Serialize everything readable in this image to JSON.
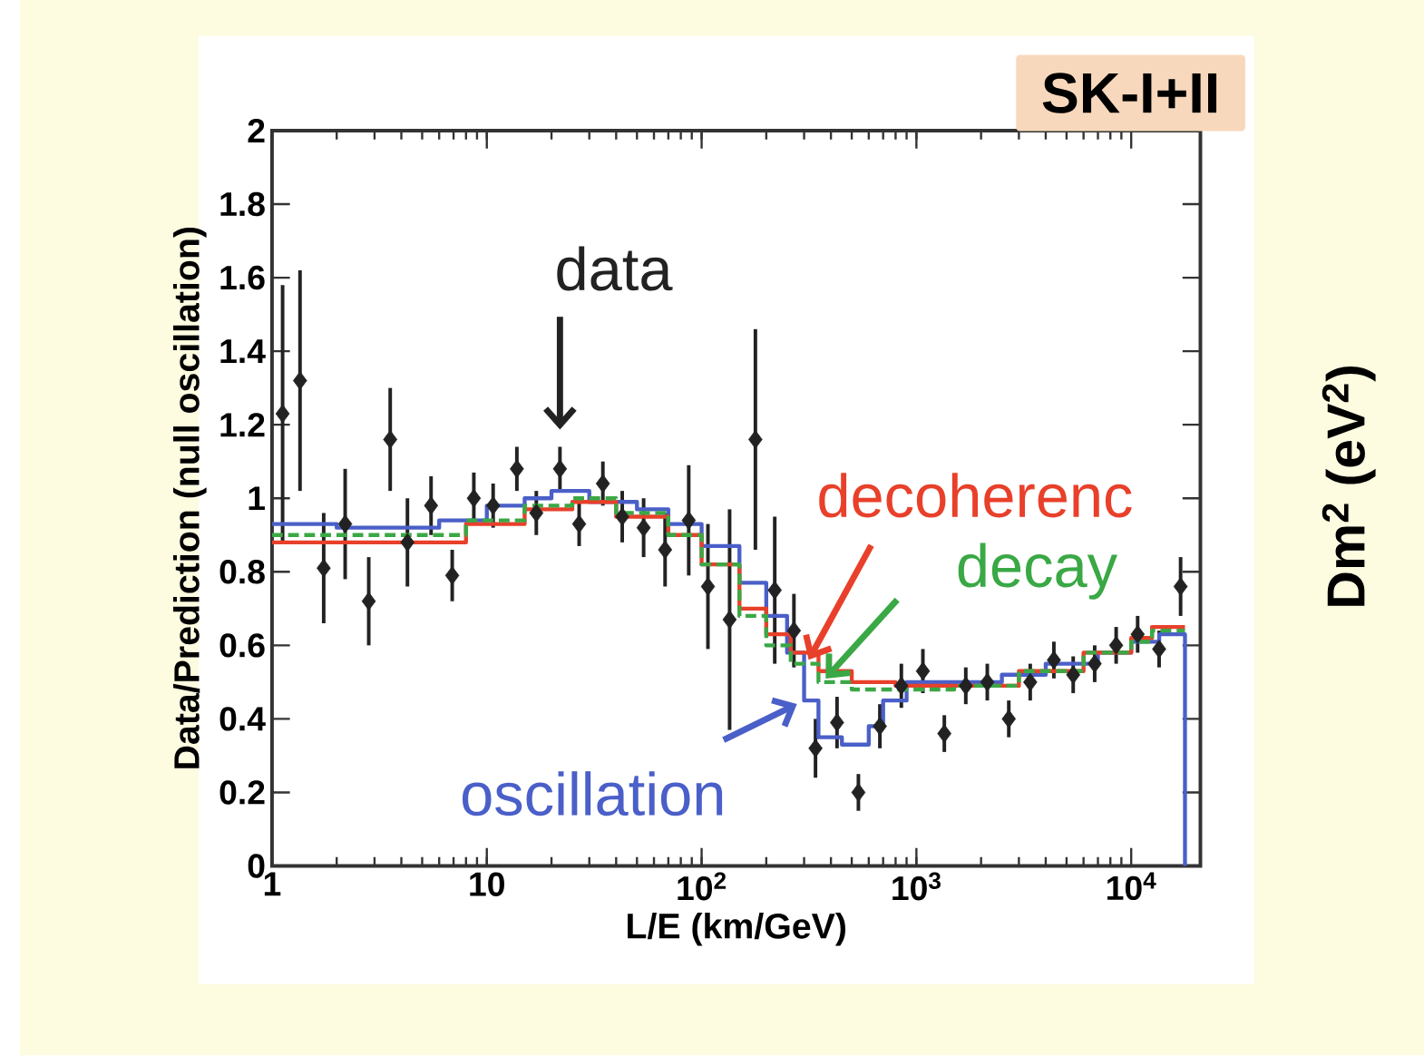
{
  "chart_data": {
    "type": "step",
    "title": "SK-I+II",
    "xlabel": "L/E (km/GeV)",
    "ylabel": "Data/Prediction (null oscillation)",
    "y2label": "Dm$^{2}$ (eV$^{2}$)",
    "log": "x",
    "xlim": [
      1,
      21000
    ],
    "ylim": [
      0,
      2
    ],
    "xticks": [
      1,
      10,
      {
        "value": 100,
        "label": "10$^{2}$"
      },
      {
        "value": 1000,
        "label": "10$^{3}$"
      },
      {
        "value": 10000,
        "label": "10$^{4}$"
      }
    ],
    "yticks": [
      0,
      0.2,
      0.4,
      0.6,
      0.8,
      1,
      1.2,
      1.4,
      1.6,
      1.8,
      2
    ],
    "marker": "none",
    "series": [
      {
        "name": "data",
        "type": "scatter",
        "marker": "diamond",
        "color": "#222222",
        "x": [
          1.12,
          1.35,
          1.74,
          2.19,
          2.82,
          3.55,
          4.27,
          5.5,
          6.9,
          8.7,
          10.7,
          13.8,
          17,
          21.9,
          26.9,
          34.7,
          42.7,
          53.7,
          67.6,
          87.1,
          107,
          135,
          178,
          219,
          269,
          339,
          427,
          537,
          676,
          851,
          1072,
          1349,
          1698,
          2138,
          2692,
          3388,
          4365,
          5370,
          6761,
          8511,
          10715,
          13490,
          16982
        ],
        "values": [
          1.23,
          1.32,
          0.81,
          0.93,
          0.72,
          1.16,
          0.88,
          0.98,
          0.79,
          1.0,
          0.98,
          1.08,
          0.96,
          1.08,
          0.93,
          1.04,
          0.95,
          0.92,
          0.86,
          0.94,
          0.76,
          0.67,
          1.16,
          0.75,
          0.64,
          0.32,
          0.39,
          0.2,
          0.38,
          0.49,
          0.53,
          0.36,
          0.49,
          0.5,
          0.4,
          0.5,
          0.56,
          0.52,
          0.55,
          0.6,
          0.63,
          0.59,
          0.76
        ],
        "errors": [
          0.35,
          0.3,
          0.15,
          0.15,
          0.12,
          0.14,
          0.12,
          0.08,
          0.07,
          0.07,
          0.06,
          0.06,
          0.06,
          0.06,
          0.06,
          0.06,
          0.07,
          0.08,
          0.1,
          0.15,
          0.17,
          0.3,
          0.3,
          0.2,
          0.1,
          0.08,
          0.07,
          0.05,
          0.06,
          0.06,
          0.06,
          0.05,
          0.05,
          0.05,
          0.05,
          0.05,
          0.05,
          0.05,
          0.05,
          0.05,
          0.05,
          0.05,
          0.08
        ]
      },
      {
        "name": "oscillation",
        "color": "#4a5fc8",
        "x": [
          1,
          2,
          3.5,
          6,
          10,
          15,
          20,
          30,
          50,
          70,
          100,
          150,
          200,
          250,
          300,
          350,
          450,
          600,
          700,
          900,
          1500,
          2500,
          4000,
          7000,
          10000,
          13500,
          17800
        ],
        "values": [
          0.93,
          0.92,
          0.92,
          0.94,
          0.98,
          1.0,
          1.02,
          0.99,
          0.97,
          0.93,
          0.87,
          0.77,
          0.68,
          0.58,
          0.45,
          0.35,
          0.33,
          0.38,
          0.45,
          0.5,
          0.5,
          0.52,
          0.55,
          0.58,
          0.61,
          0.63,
          0
        ]
      },
      {
        "name": "decoherenc",
        "color": "#e8402a",
        "x": [
          1,
          3,
          8,
          15,
          25,
          40,
          70,
          100,
          150,
          200,
          260,
          350,
          500,
          800,
          1500,
          3000,
          6000,
          10000,
          12500,
          17800
        ],
        "values": [
          0.88,
          0.88,
          0.93,
          0.97,
          0.99,
          0.95,
          0.9,
          0.82,
          0.7,
          0.63,
          0.58,
          0.53,
          0.5,
          0.49,
          0.49,
          0.53,
          0.58,
          0.62,
          0.65,
          0.65
        ]
      },
      {
        "name": "decay",
        "color": "#3aa845",
        "line_style": "dashed",
        "x": [
          1,
          3,
          8,
          15,
          25,
          40,
          70,
          100,
          150,
          200,
          260,
          350,
          500,
          800,
          1500,
          3000,
          6000,
          10000,
          12500,
          17800
        ],
        "values": [
          0.9,
          0.9,
          0.94,
          0.98,
          1.0,
          0.96,
          0.9,
          0.82,
          0.68,
          0.6,
          0.55,
          0.5,
          0.48,
          0.48,
          0.49,
          0.53,
          0.58,
          0.61,
          0.64,
          0.64
        ]
      }
    ]
  }
}
